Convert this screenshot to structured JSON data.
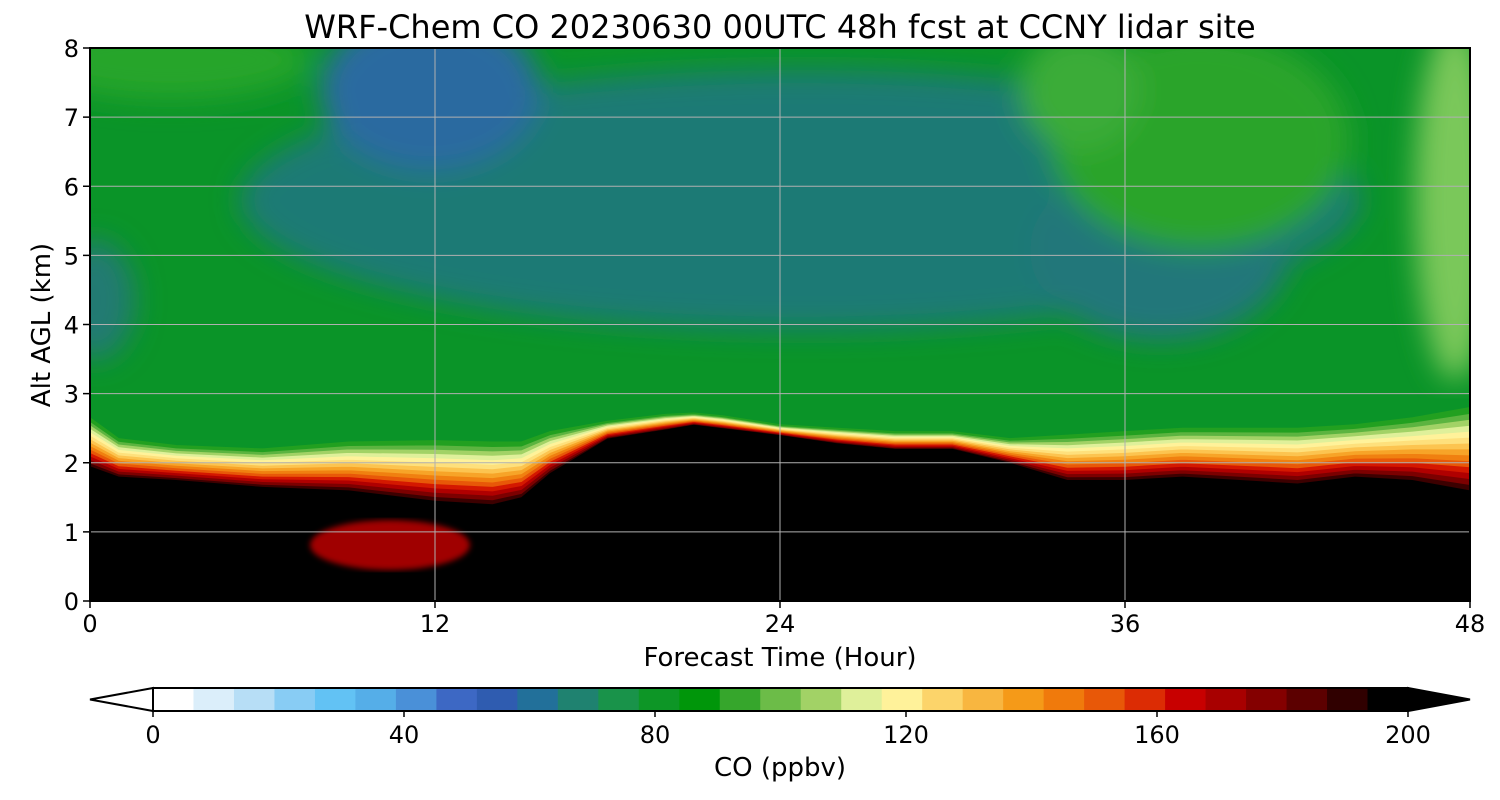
{
  "chart_data": {
    "type": "heatmap",
    "title": "WRF-Chem CO  20230630 00UTC 48h fcst at CCNY lidar site",
    "xlabel": "Forecast Time (Hour)",
    "ylabel": "Alt AGL (km)",
    "xlim": [
      0,
      48
    ],
    "ylim": [
      0,
      8
    ],
    "x_ticks": [
      0,
      12,
      24,
      36,
      48
    ],
    "y_ticks": [
      0,
      1,
      2,
      3,
      4,
      5,
      6,
      7,
      8
    ],
    "grid": true,
    "colorbar": {
      "label": "CO  (ppbv)",
      "min": 0,
      "max": 200,
      "ticks": [
        0,
        40,
        80,
        120,
        160,
        200
      ],
      "extend": "both",
      "colors": [
        "#ffffff",
        "#dbeefa",
        "#b7def6",
        "#88ccf4",
        "#62c2f4",
        "#55aee8",
        "#4a90d8",
        "#3d68c4",
        "#2f5cb0",
        "#22709a",
        "#1f8270",
        "#19934a",
        "#0d9626",
        "#00960a",
        "#36a62c",
        "#6cbc48",
        "#a2d266",
        "#dff09a",
        "#fff29a",
        "#fcd46a",
        "#f8b640",
        "#f59a18",
        "#f07a0c",
        "#e85808",
        "#dc2c04",
        "#c80000",
        "#a80000",
        "#840000",
        "#5c0000",
        "#300000",
        "#000000"
      ]
    },
    "series": [
      {
        "name": "",
        "x": [
          0,
          1,
          3,
          6,
          9,
          12,
          14,
          15,
          16,
          18,
          20,
          21,
          22,
          24,
          26,
          28,
          30,
          32,
          34,
          36,
          38,
          40,
          42,
          44,
          46,
          48
        ],
        "values": [
          1.95,
          1.8,
          1.75,
          1.65,
          1.6,
          1.45,
          1.4,
          1.5,
          1.85,
          2.35,
          2.48,
          2.55,
          2.5,
          2.4,
          2.28,
          2.2,
          2.2,
          2.0,
          1.75,
          1.75,
          1.8,
          1.75,
          1.7,
          1.8,
          1.75,
          1.6
        ]
      },
      {
        "name": "",
        "x": [
          0,
          1,
          3,
          6,
          9,
          12,
          14,
          15,
          16,
          18,
          20,
          21,
          22,
          24,
          26,
          28,
          30,
          32,
          34,
          36,
          38,
          40,
          42,
          44,
          46,
          48
        ],
        "values": [
          2.65,
          2.35,
          2.25,
          2.2,
          2.3,
          2.32,
          2.3,
          2.3,
          2.45,
          2.6,
          2.7,
          2.72,
          2.68,
          2.55,
          2.5,
          2.45,
          2.45,
          2.35,
          2.4,
          2.45,
          2.5,
          2.5,
          2.5,
          2.55,
          2.65,
          2.8
        ]
      }
    ],
    "annotations": []
  }
}
